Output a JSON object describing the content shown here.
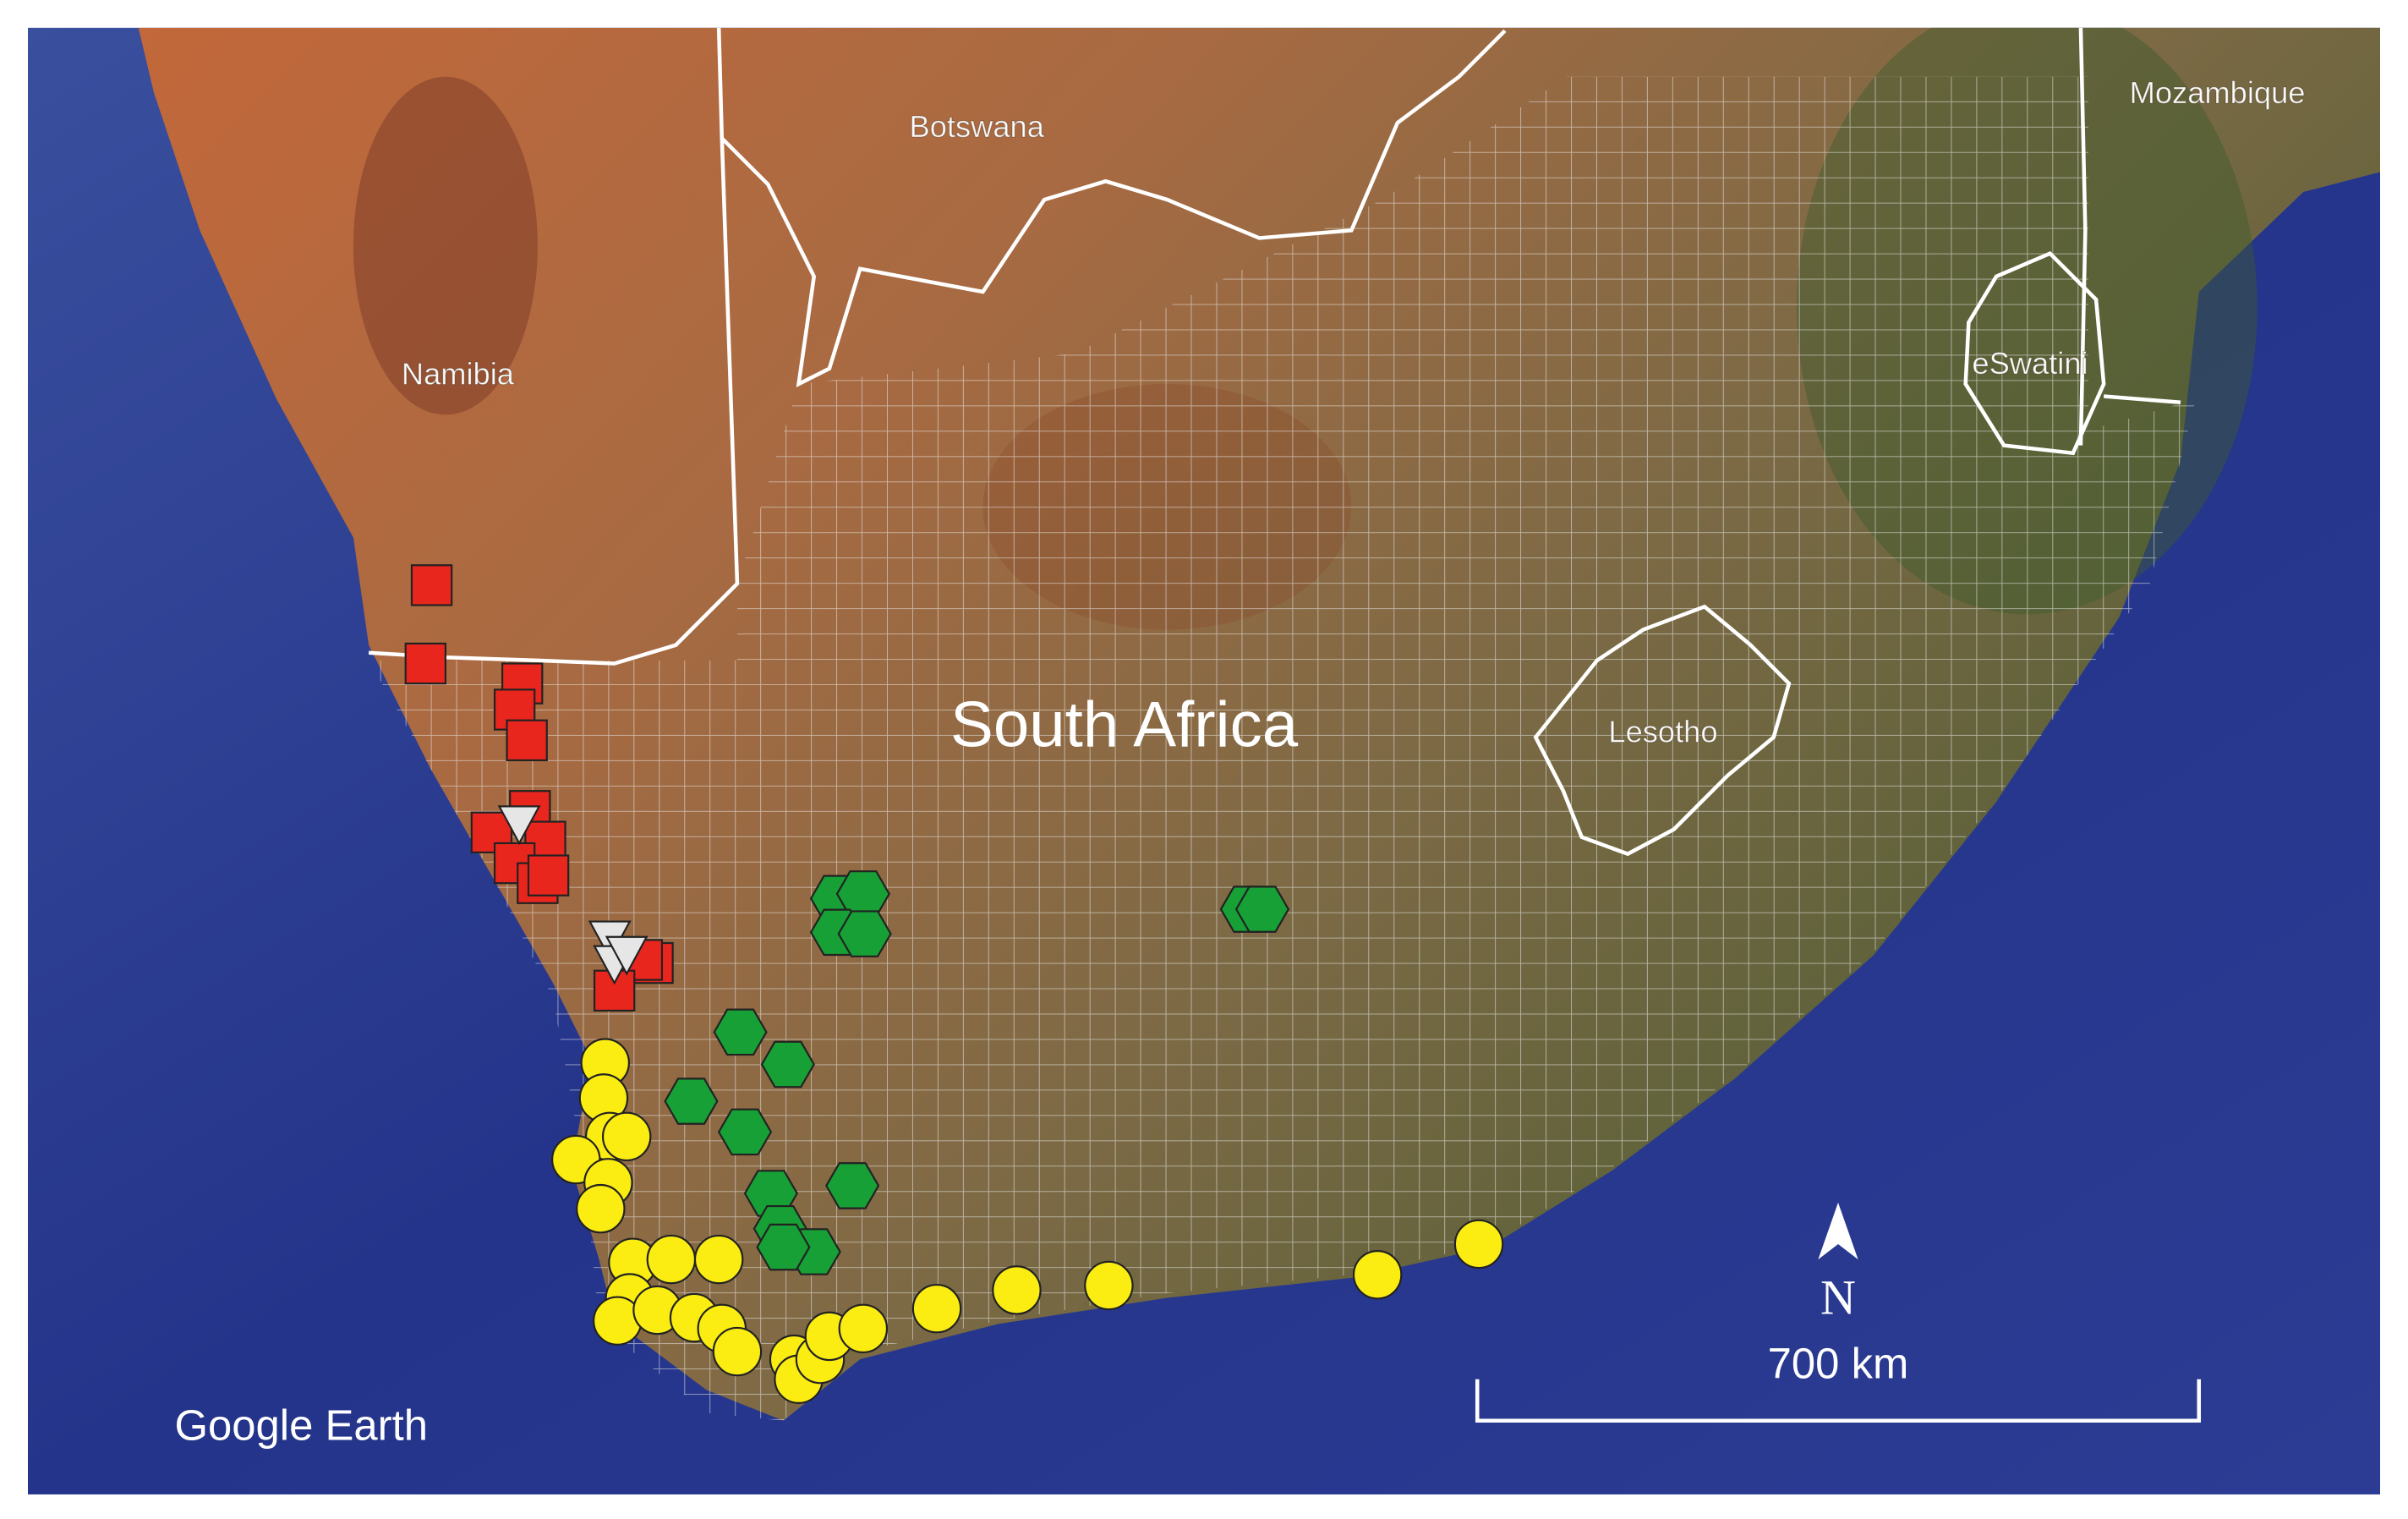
{
  "map": {
    "labels": [
      "Botswana",
      "Namibia",
      "Mozambique",
      "eSwatini",
      "Lesotho",
      "South Africa"
    ]
  },
  "attribution": "Google Earth",
  "scale_bar": {
    "north": "N",
    "distance": "700 km"
  }
}
